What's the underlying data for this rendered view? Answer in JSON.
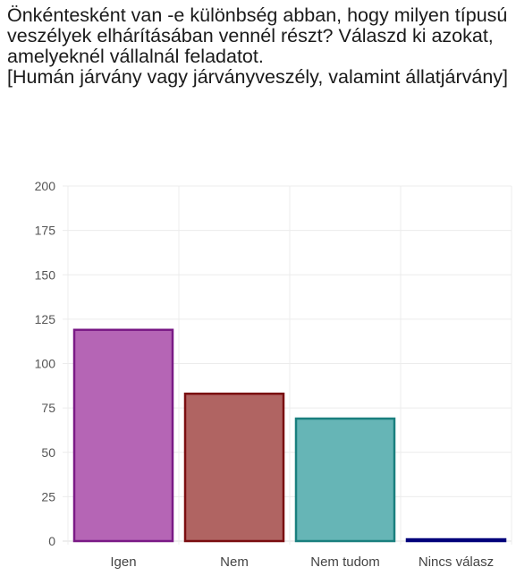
{
  "chart_data": {
    "type": "bar",
    "title": "Önkéntesként van -e különbség abban, hogy milyen típusú veszélyek elhárításában vennél részt? Válaszd ki azokat, amelyeknél vállalnál feladatot.\n[Humán járvány vagy járványveszély, valamint állatjárvány]",
    "categories": [
      "Igen",
      "Nem",
      "Nem tudom",
      "Nincs válasz"
    ],
    "values": [
      119,
      83,
      69,
      1
    ],
    "ylim": [
      0,
      200
    ],
    "yticks": [
      0,
      25,
      50,
      75,
      100,
      125,
      150,
      175,
      200
    ],
    "grid": true,
    "bar_colors": [
      "#b565b5",
      "#b06462",
      "#66b5b6",
      "#3a3aa8"
    ],
    "bar_edge_colors": [
      "#7a1a86",
      "#7a0d10",
      "#1a7f7e",
      "#00007a"
    ]
  }
}
